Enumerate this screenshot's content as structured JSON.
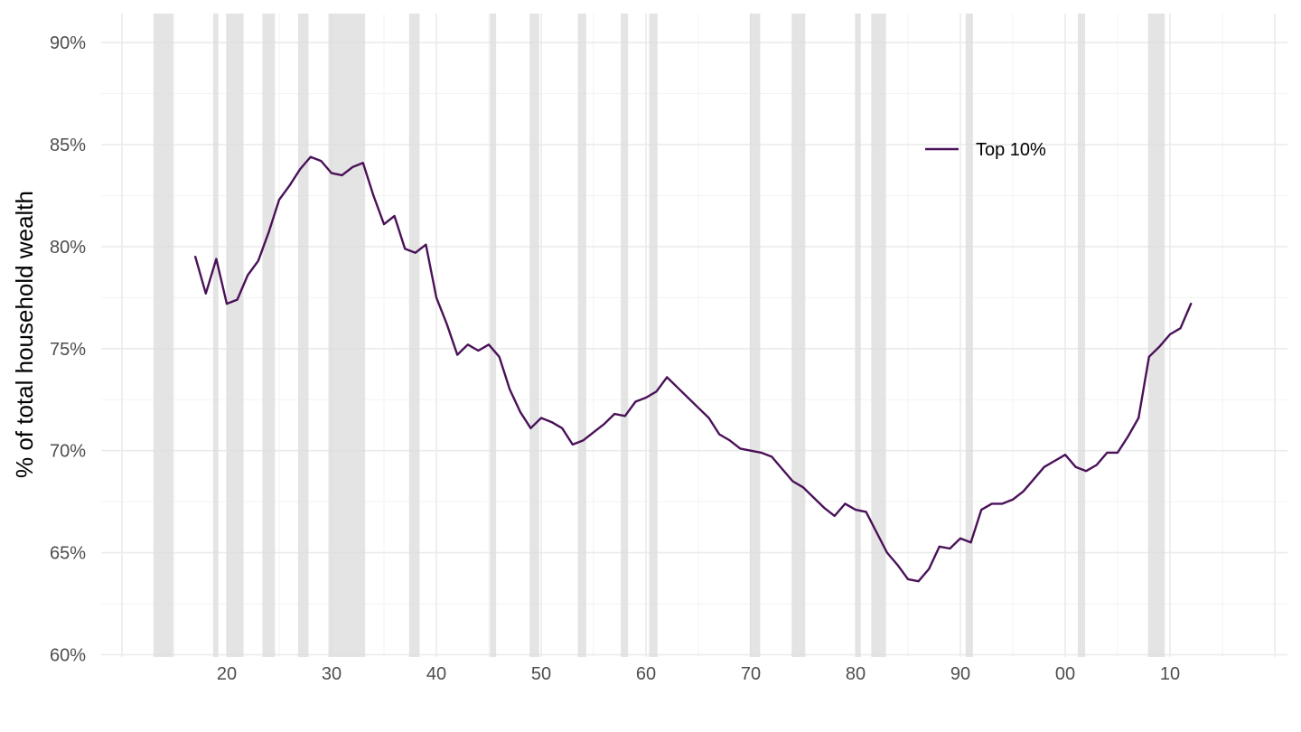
{
  "chart_data": {
    "type": "line",
    "title": "",
    "xlabel": "",
    "ylabel": "% of total household wealth",
    "xlim": [
      1910,
      2020
    ],
    "ylim": [
      0.59,
      0.92
    ],
    "x_ticks": [
      1920,
      1930,
      1940,
      1950,
      1960,
      1970,
      1980,
      1990,
      2000,
      2010
    ],
    "x_tick_labels": [
      "20",
      "30",
      "40",
      "50",
      "60",
      "70",
      "80",
      "90",
      "00",
      "10"
    ],
    "y_ticks": [
      0.6,
      0.65,
      0.7,
      0.75,
      0.8,
      0.85,
      0.9
    ],
    "y_tick_labels": [
      "60%",
      "65%",
      "70%",
      "75%",
      "80%",
      "85%",
      "90%"
    ],
    "grid": true,
    "legend_position": "top-right",
    "recession_shading_color": "#dcdcdc",
    "recessions": [
      [
        1913.0,
        1914.9
      ],
      [
        1918.7,
        1919.2
      ],
      [
        1920.0,
        1921.6
      ],
      [
        1923.4,
        1924.6
      ],
      [
        1926.8,
        1927.8
      ],
      [
        1929.7,
        1933.2
      ],
      [
        1937.4,
        1938.4
      ],
      [
        1945.1,
        1945.7
      ],
      [
        1948.9,
        1949.8
      ],
      [
        1953.5,
        1954.3
      ],
      [
        1957.6,
        1958.3
      ],
      [
        1960.3,
        1961.1
      ],
      [
        1969.9,
        1970.9
      ],
      [
        1973.9,
        1975.2
      ],
      [
        1980.0,
        1980.5
      ],
      [
        1981.5,
        1982.9
      ],
      [
        1990.5,
        1991.2
      ],
      [
        2001.2,
        2001.9
      ],
      [
        2007.9,
        2009.5
      ]
    ],
    "series": [
      {
        "name": "Top 10%",
        "color": "#4a1158",
        "x": [
          1917,
          1918,
          1919,
          1920,
          1921,
          1922,
          1923,
          1924,
          1925,
          1926,
          1927,
          1928,
          1929,
          1930,
          1931,
          1932,
          1933,
          1934,
          1935,
          1936,
          1937,
          1938,
          1939,
          1940,
          1941,
          1942,
          1943,
          1944,
          1945,
          1946,
          1947,
          1948,
          1949,
          1950,
          1951,
          1952,
          1953,
          1954,
          1955,
          1956,
          1957,
          1958,
          1959,
          1960,
          1961,
          1962,
          1963,
          1964,
          1965,
          1966,
          1967,
          1968,
          1969,
          1970,
          1971,
          1972,
          1973,
          1974,
          1975,
          1976,
          1977,
          1978,
          1979,
          1980,
          1981,
          1982,
          1983,
          1984,
          1985,
          1986,
          1987,
          1988,
          1989,
          1990,
          1991,
          1992,
          1993,
          1994,
          1995,
          1996,
          1997,
          1998,
          1999,
          2000,
          2001,
          2002,
          2003,
          2004,
          2005,
          2006,
          2007,
          2008,
          2009,
          2010,
          2011,
          2012
        ],
        "values": [
          0.795,
          0.777,
          0.794,
          0.772,
          0.774,
          0.786,
          0.793,
          0.807,
          0.823,
          0.83,
          0.838,
          0.844,
          0.842,
          0.836,
          0.835,
          0.839,
          0.841,
          0.825,
          0.811,
          0.815,
          0.799,
          0.797,
          0.801,
          0.775,
          0.762,
          0.747,
          0.752,
          0.749,
          0.752,
          0.746,
          0.73,
          0.719,
          0.711,
          0.716,
          0.714,
          0.711,
          0.703,
          0.705,
          0.709,
          0.713,
          0.718,
          0.717,
          0.724,
          0.726,
          0.729,
          0.736,
          0.731,
          0.726,
          0.721,
          0.716,
          0.708,
          0.705,
          0.701,
          0.7,
          0.699,
          0.697,
          0.691,
          0.685,
          0.682,
          0.677,
          0.672,
          0.668,
          0.674,
          0.671,
          0.67,
          0.66,
          0.65,
          0.644,
          0.637,
          0.636,
          0.642,
          0.653,
          0.652,
          0.657,
          0.655,
          0.671,
          0.674,
          0.674,
          0.676,
          0.68,
          0.686,
          0.692,
          0.695,
          0.698,
          0.692,
          0.69,
          0.693,
          0.699,
          0.699,
          0.707,
          0.716,
          0.746,
          0.751,
          0.757,
          0.76,
          0.772
        ]
      }
    ]
  }
}
